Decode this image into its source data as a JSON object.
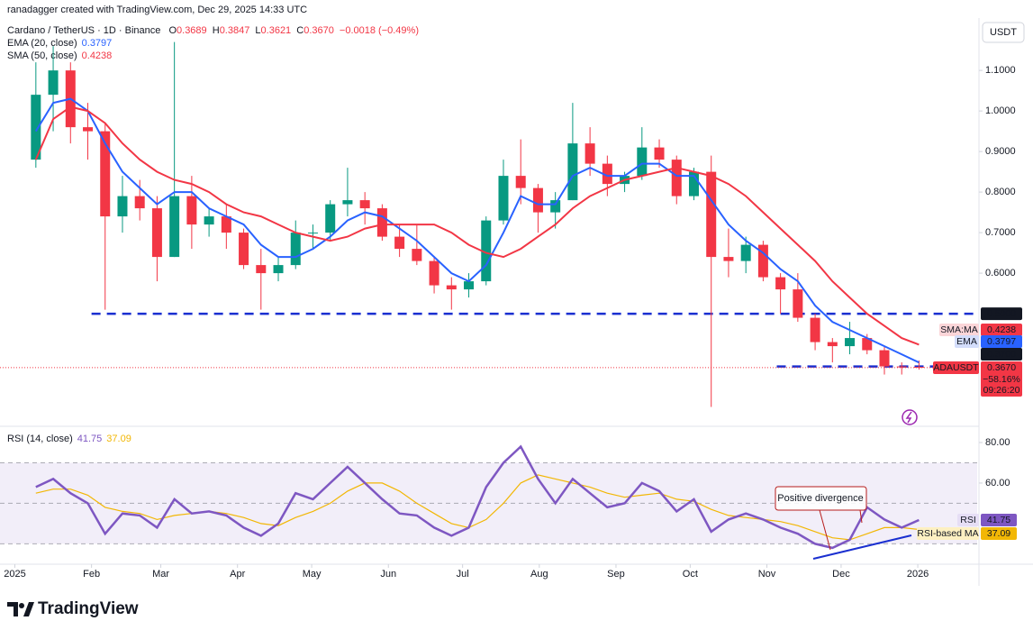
{
  "header": "ranadagger created with TradingView.com, Dec 29, 2025 14:33 UTC",
  "currency": "USDT",
  "brand": "TradingView",
  "chart_data": [
    {
      "type": "candlestick",
      "title": "Cardano / TetherUS · 1D · Binance",
      "ohlc_labels": {
        "open": "O",
        "high": "H",
        "low": "L",
        "close": "C"
      },
      "ohlc_values": {
        "open": "0.3689",
        "high": "0.3847",
        "low": "0.3621",
        "close": "0.3670"
      },
      "change": "−0.0018 (−0.49%)",
      "x": [
        "2025-01-06",
        "2025-01-13",
        "2025-01-20",
        "2025-01-27",
        "2025-02-03",
        "2025-02-10",
        "2025-02-17",
        "2025-02-24",
        "2025-03-03",
        "2025-03-10",
        "2025-03-17",
        "2025-03-24",
        "2025-03-31",
        "2025-04-07",
        "2025-04-14",
        "2025-04-21",
        "2025-04-28",
        "2025-05-05",
        "2025-05-12",
        "2025-05-19",
        "2025-05-26",
        "2025-06-02",
        "2025-06-09",
        "2025-06-16",
        "2025-06-23",
        "2025-06-30",
        "2025-07-07",
        "2025-07-14",
        "2025-07-21",
        "2025-07-28",
        "2025-08-04",
        "2025-08-11",
        "2025-08-18",
        "2025-08-25",
        "2025-09-01",
        "2025-09-08",
        "2025-09-15",
        "2025-09-22",
        "2025-09-29",
        "2025-10-06",
        "2025-10-13",
        "2025-10-20",
        "2025-10-27",
        "2025-11-03",
        "2025-11-10",
        "2025-11-17",
        "2025-11-24",
        "2025-12-01",
        "2025-12-08",
        "2025-12-15",
        "2025-12-22",
        "2025-12-29"
      ],
      "open": [
        0.88,
        1.04,
        1.1,
        0.96,
        0.95,
        0.74,
        0.79,
        0.76,
        0.64,
        0.79,
        0.72,
        0.74,
        0.7,
        0.62,
        0.6,
        0.62,
        0.7,
        0.7,
        0.77,
        0.78,
        0.76,
        0.69,
        0.66,
        0.63,
        0.57,
        0.56,
        0.58,
        0.73,
        0.84,
        0.81,
        0.75,
        0.78,
        0.92,
        0.87,
        0.82,
        0.84,
        0.91,
        0.88,
        0.79,
        0.85,
        0.64,
        0.63,
        0.67,
        0.59,
        0.56,
        0.49,
        0.43,
        0.42,
        0.44,
        0.41,
        0.37,
        0.3689
      ],
      "high": [
        1.12,
        1.16,
        1.12,
        1.02,
        0.97,
        0.84,
        0.83,
        0.79,
        1.17,
        0.84,
        0.76,
        0.77,
        0.71,
        0.66,
        0.64,
        0.73,
        0.72,
        0.78,
        0.86,
        0.8,
        0.77,
        0.72,
        0.72,
        0.64,
        0.59,
        0.6,
        0.74,
        0.88,
        0.93,
        0.82,
        0.8,
        1.02,
        0.96,
        0.89,
        0.85,
        0.96,
        0.93,
        0.89,
        0.86,
        0.89,
        0.71,
        0.69,
        0.68,
        0.6,
        0.6,
        0.5,
        0.44,
        0.48,
        0.45,
        0.42,
        0.38,
        0.3847
      ],
      "low": [
        0.86,
        0.95,
        0.92,
        0.88,
        0.51,
        0.7,
        0.73,
        0.58,
        0.64,
        0.66,
        0.69,
        0.66,
        0.61,
        0.51,
        0.58,
        0.61,
        0.66,
        0.68,
        0.74,
        0.72,
        0.68,
        0.64,
        0.62,
        0.55,
        0.51,
        0.54,
        0.57,
        0.72,
        0.77,
        0.7,
        0.71,
        0.78,
        0.84,
        0.79,
        0.8,
        0.83,
        0.86,
        0.77,
        0.78,
        0.27,
        0.59,
        0.6,
        0.58,
        0.5,
        0.48,
        0.41,
        0.38,
        0.4,
        0.4,
        0.35,
        0.35,
        0.3621
      ],
      "close": [
        1.04,
        1.1,
        0.96,
        0.95,
        0.74,
        0.79,
        0.76,
        0.64,
        0.79,
        0.72,
        0.74,
        0.7,
        0.62,
        0.6,
        0.62,
        0.7,
        0.7,
        0.77,
        0.78,
        0.76,
        0.69,
        0.66,
        0.63,
        0.57,
        0.56,
        0.58,
        0.73,
        0.84,
        0.81,
        0.75,
        0.78,
        0.92,
        0.87,
        0.82,
        0.84,
        0.91,
        0.88,
        0.79,
        0.85,
        0.64,
        0.63,
        0.67,
        0.59,
        0.56,
        0.49,
        0.43,
        0.42,
        0.44,
        0.41,
        0.37,
        0.3689,
        0.367
      ],
      "up_color": "#089981",
      "down_color": "#f23645",
      "series": [
        {
          "name": "EMA (20, close)",
          "tag": "EMA",
          "color": "#2962ff",
          "value_label": "0.3797",
          "values": [
            0.95,
            1.02,
            1.03,
            1.0,
            0.92,
            0.85,
            0.81,
            0.77,
            0.8,
            0.8,
            0.76,
            0.74,
            0.72,
            0.67,
            0.64,
            0.64,
            0.66,
            0.69,
            0.73,
            0.75,
            0.74,
            0.71,
            0.68,
            0.64,
            0.6,
            0.58,
            0.62,
            0.7,
            0.79,
            0.77,
            0.77,
            0.84,
            0.86,
            0.84,
            0.84,
            0.87,
            0.87,
            0.84,
            0.84,
            0.78,
            0.72,
            0.68,
            0.65,
            0.61,
            0.58,
            0.52,
            0.48,
            0.46,
            0.44,
            0.42,
            0.4,
            0.3797
          ]
        },
        {
          "name": "SMA (50, close)",
          "tag": "SMA:MA",
          "color": "#f23645",
          "value_label": "0.4238",
          "values": [
            0.88,
            0.98,
            1.01,
            1.0,
            0.97,
            0.92,
            0.88,
            0.85,
            0.83,
            0.82,
            0.8,
            0.77,
            0.75,
            0.74,
            0.72,
            0.7,
            0.69,
            0.68,
            0.69,
            0.71,
            0.72,
            0.72,
            0.72,
            0.72,
            0.7,
            0.67,
            0.65,
            0.64,
            0.66,
            0.69,
            0.72,
            0.76,
            0.79,
            0.81,
            0.83,
            0.84,
            0.85,
            0.86,
            0.85,
            0.84,
            0.82,
            0.79,
            0.75,
            0.71,
            0.67,
            0.63,
            0.58,
            0.54,
            0.5,
            0.47,
            0.44,
            0.4238
          ]
        }
      ],
      "levels": [
        {
          "value": 0.5,
          "label": "0.5000",
          "from": "2025-02-01",
          "color": "#1a2fd0"
        },
        {
          "value": 0.37,
          "label": "0.3700",
          "from": "2025-11-05",
          "color": "#1a2fd0"
        }
      ],
      "last_price": {
        "symbol": "ADAUSDT",
        "value": 0.367,
        "label": "0.3670",
        "change": "−58.16%",
        "countdown": "09:26:20"
      },
      "xlim": [
        "2024-12-26",
        "2026-01-25"
      ],
      "xticks": [
        {
          "value": "2025-01-01",
          "label": "2025"
        },
        {
          "value": "2025-02-01",
          "label": "Feb"
        },
        {
          "value": "2025-03-01",
          "label": "Mar"
        },
        {
          "value": "2025-04-01",
          "label": "Apr"
        },
        {
          "value": "2025-05-01",
          "label": "May"
        },
        {
          "value": "2025-06-01",
          "label": "Jun"
        },
        {
          "value": "2025-07-01",
          "label": "Jul"
        },
        {
          "value": "2025-08-01",
          "label": "Aug"
        },
        {
          "value": "2025-09-01",
          "label": "Sep"
        },
        {
          "value": "2025-10-01",
          "label": "Oct"
        },
        {
          "value": "2025-11-01",
          "label": "Nov"
        },
        {
          "value": "2025-12-01",
          "label": "Dec"
        },
        {
          "value": "2026-01-01",
          "label": "2026"
        }
      ],
      "ylim": [
        0.229,
        1.207
      ],
      "yticks": [
        {
          "value": 0.6,
          "label": "0.6000"
        },
        {
          "value": 0.7,
          "label": "0.7000"
        },
        {
          "value": 0.8,
          "label": "0.8000"
        },
        {
          "value": 0.9,
          "label": "0.9000"
        },
        {
          "value": 1.0,
          "label": "1.0000"
        },
        {
          "value": 1.1,
          "label": "1.1000"
        }
      ]
    },
    {
      "type": "line",
      "title": "RSI (14, close)",
      "annotation": "Positive divergence",
      "band": [
        30,
        70
      ],
      "band_color": "#7e57c2",
      "guides": [
        70,
        50,
        30
      ],
      "series": [
        {
          "name": "RSI",
          "tag": "RSI",
          "color": "#7e57c2",
          "value_label": "41.75",
          "values": [
            58,
            62,
            55,
            50,
            35,
            45,
            44,
            38,
            52,
            45,
            46,
            44,
            38,
            34,
            40,
            55,
            52,
            60,
            68,
            60,
            52,
            45,
            44,
            38,
            34,
            38,
            58,
            70,
            78,
            62,
            50,
            62,
            55,
            48,
            50,
            60,
            56,
            46,
            52,
            36,
            42,
            45,
            42,
            38,
            35,
            30,
            28,
            32,
            48,
            42,
            38,
            41.75
          ]
        },
        {
          "name": "RSI-based MA",
          "tag": "RSI-based MA",
          "color": "#f2b705",
          "value_label": "37.09",
          "values": [
            55,
            57,
            57,
            54,
            48,
            46,
            45,
            42,
            44,
            45,
            46,
            45,
            43,
            40,
            39,
            43,
            46,
            50,
            56,
            60,
            60,
            56,
            50,
            45,
            40,
            38,
            42,
            50,
            60,
            64,
            62,
            60,
            58,
            55,
            53,
            54,
            55,
            52,
            51,
            47,
            44,
            43,
            42,
            41,
            39,
            36,
            33,
            32,
            35,
            38,
            38,
            37.09
          ]
        }
      ],
      "ylim": [
        20.4,
        87.1
      ],
      "yticks": [
        {
          "value": 80,
          "label": "80.00"
        },
        {
          "value": 60,
          "label": "60.00"
        }
      ]
    }
  ]
}
